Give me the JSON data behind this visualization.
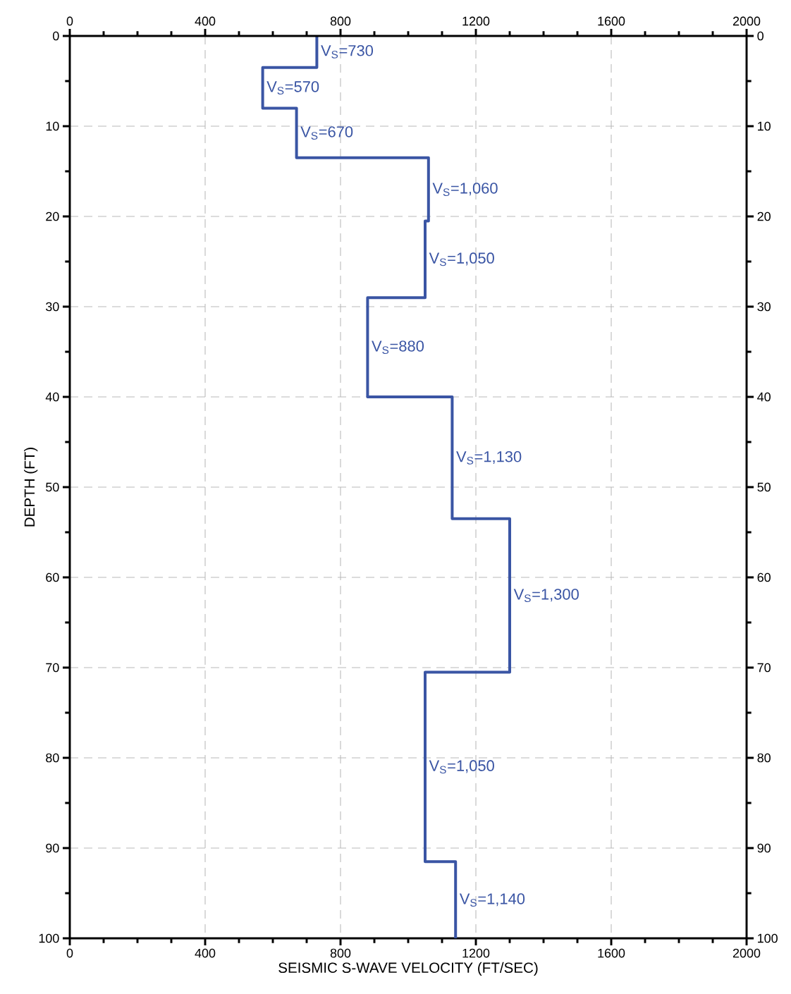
{
  "chart_data": {
    "type": "line",
    "xlabel": "SEISMIC S-WAVE VELOCITY (FT/SEC)",
    "ylabel": "DEPTH (FT)",
    "xlim": [
      0,
      2000
    ],
    "ylim": [
      100,
      0
    ],
    "x2lim": [
      0,
      2000
    ],
    "y2lim": [
      100,
      0
    ],
    "xticks": [
      0,
      {
        "value": 100,
        "label": null
      },
      {
        "value": 200,
        "label": null
      },
      {
        "value": 300,
        "label": null
      },
      400,
      {
        "value": 500,
        "label": null
      },
      {
        "value": 600,
        "label": null
      },
      {
        "value": 700,
        "label": null
      },
      800,
      {
        "value": 900,
        "label": null
      },
      {
        "value": 1000,
        "label": null
      },
      {
        "value": 1100,
        "label": null
      },
      1200,
      {
        "value": 1300,
        "label": null
      },
      {
        "value": 1400,
        "label": null
      },
      {
        "value": 1500,
        "label": null
      },
      1600,
      {
        "value": 1700,
        "label": null
      },
      {
        "value": 1800,
        "label": null
      },
      {
        "value": 1900,
        "label": null
      },
      2000
    ],
    "x2ticks": [
      0,
      {
        "value": 100,
        "label": null
      },
      {
        "value": 200,
        "label": null
      },
      {
        "value": 300,
        "label": null
      },
      400,
      {
        "value": 500,
        "label": null
      },
      {
        "value": 600,
        "label": null
      },
      {
        "value": 700,
        "label": null
      },
      800,
      {
        "value": 900,
        "label": null
      },
      {
        "value": 1000,
        "label": null
      },
      {
        "value": 1100,
        "label": null
      },
      1200,
      {
        "value": 1300,
        "label": null
      },
      {
        "value": 1400,
        "label": null
      },
      {
        "value": 1500,
        "label": null
      },
      1600,
      {
        "value": 1700,
        "label": null
      },
      {
        "value": 1800,
        "label": null
      },
      {
        "value": 1900,
        "label": null
      },
      2000
    ],
    "yticks": [
      0,
      {
        "value": 5,
        "label": null
      },
      10,
      {
        "value": 15,
        "label": null
      },
      20,
      {
        "value": 25,
        "label": null
      },
      30,
      {
        "value": 35,
        "label": null
      },
      40,
      {
        "value": 45,
        "label": null
      },
      50,
      {
        "value": 55,
        "label": null
      },
      60,
      {
        "value": 65,
        "label": null
      },
      70,
      {
        "value": 75,
        "label": null
      },
      80,
      {
        "value": 85,
        "label": null
      },
      90,
      {
        "value": 95,
        "label": null
      },
      100
    ],
    "y2ticks": [
      0,
      {
        "value": 5,
        "label": null
      },
      10,
      {
        "value": 15,
        "label": null
      },
      20,
      {
        "value": 25,
        "label": null
      },
      30,
      {
        "value": 35,
        "label": null
      },
      40,
      {
        "value": 45,
        "label": null
      },
      50,
      {
        "value": 55,
        "label": null
      },
      60,
      {
        "value": 65,
        "label": null
      },
      70,
      {
        "value": 75,
        "label": null
      },
      80,
      {
        "value": 85,
        "label": null
      },
      90,
      {
        "value": 95,
        "label": null
      },
      100
    ],
    "grid": true,
    "series": [
      {
        "color": "#3a55a4",
        "x": [
          730,
          730,
          570,
          570,
          670,
          670,
          1060,
          1060,
          1050,
          1050,
          880,
          880,
          1130,
          1130,
          1300,
          1300,
          1050,
          1050,
          1140,
          1140
        ],
        "values": [
          0,
          3.5,
          3.5,
          8,
          8,
          13.5,
          13.5,
          20.5,
          20.5,
          29,
          29,
          40,
          40,
          53.5,
          53.5,
          70.5,
          70.5,
          91.5,
          91.5,
          100
        ]
      }
    ],
    "annotations": [
      {
        "text": "V$_{S}$=730",
        "x": 730,
        "y": 1.75
      },
      {
        "text": "V$_{S}$=570",
        "x": 570,
        "y": 5.75
      },
      {
        "text": "V$_{S}$=670",
        "x": 670,
        "y": 10.75
      },
      {
        "text": "V$_{S}$=1,060",
        "x": 1060,
        "y": 17
      },
      {
        "text": "V$_{S}$=1,050",
        "x": 1050,
        "y": 24.75
      },
      {
        "text": "V$_{S}$=880",
        "x": 880,
        "y": 34.5
      },
      {
        "text": "V$_{S}$=1,130",
        "x": 1130,
        "y": 46.75
      },
      {
        "text": "V$_{S}$=1,300",
        "x": 1300,
        "y": 62
      },
      {
        "text": "V$_{S}$=1,050",
        "x": 1050,
        "y": 81
      },
      {
        "text": "V$_{S}$=1,140",
        "x": 1140,
        "y": 95.75
      }
    ]
  }
}
